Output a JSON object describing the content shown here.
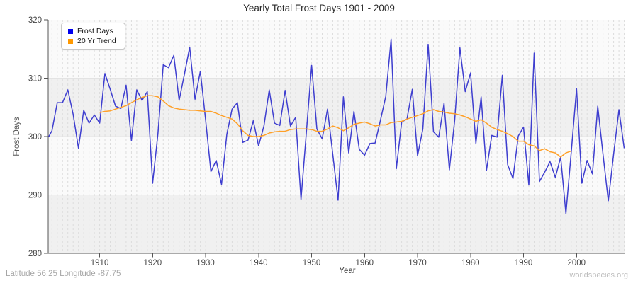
{
  "header": {
    "title": "Yearly Total Frost Days 1901 - 2009"
  },
  "footer": {
    "left": "Latitude 56.25 Longitude -87.75",
    "right": "worldspecies.org"
  },
  "chart_data": {
    "type": "line",
    "title": "Yearly Total Frost Days 1901 - 2009",
    "xlabel": "Year",
    "ylabel": "Frost Days",
    "xlim": [
      1901,
      2009
    ],
    "ylim": [
      280,
      320
    ],
    "yticks": [
      280,
      290,
      300,
      310,
      320
    ],
    "xticks": [
      1910,
      1920,
      1930,
      1940,
      1950,
      1960,
      1970,
      1980,
      1990,
      2000
    ],
    "grid": {
      "bands": true,
      "band_colors": [
        "#f0f0f0",
        "#fafafa"
      ],
      "vline_color": "#dcdcdc",
      "hline_color": "#e3e3e3",
      "axis_color": "#555555"
    },
    "legend_position": "top-left",
    "series": [
      {
        "name": "Frost Days",
        "color": "#3e3ecf",
        "swatch_color": "#0000ee",
        "x_start": 1901,
        "lead_in": {
          "year": 1900.35,
          "value": 299.9
        },
        "values": [
          301.0,
          305.8,
          305.8,
          308.0,
          303.8,
          298.0,
          304.5,
          302.3,
          303.7,
          302.3,
          310.8,
          308.1,
          305.2,
          304.8,
          308.8,
          299.3,
          308.0,
          306.2,
          307.7,
          292.0,
          300.5,
          312.3,
          311.8,
          313.9,
          306.2,
          310.7,
          315.3,
          306.4,
          311.2,
          302.8,
          294.0,
          295.9,
          291.8,
          300.4,
          304.7,
          305.8,
          299.0,
          299.4,
          302.7,
          298.4,
          301.8,
          308.0,
          302.3,
          301.9,
          307.9,
          301.8,
          303.3,
          289.2,
          300.6,
          312.2,
          301.3,
          299.6,
          304.7,
          297.0,
          289.1,
          306.8,
          297.2,
          304.3,
          297.8,
          296.8,
          298.8,
          298.9,
          302.8,
          306.9,
          316.7,
          294.5,
          302.5,
          303.0,
          308.1,
          296.7,
          301.3,
          315.8,
          300.8,
          299.9,
          305.7,
          294.3,
          302.8,
          315.2,
          307.7,
          310.9,
          298.8,
          306.8,
          294.2,
          300.2,
          299.9,
          310.5,
          295.2,
          292.8,
          300.1,
          301.6,
          291.7,
          314.3,
          292.3,
          293.9,
          295.7,
          293.0,
          296.5,
          286.8,
          297.3,
          308.2,
          292.0,
          295.9,
          293.6,
          305.2,
          297.0,
          289.0,
          297.0,
          304.6,
          298.0
        ]
      },
      {
        "name": "20 Yr Trend",
        "color": "#ffa028",
        "swatch_color": "#ff9900",
        "x_start": 1910,
        "values": [
          304.1,
          304.3,
          304.4,
          304.7,
          305.0,
          305.3,
          305.8,
          306.3,
          306.7,
          307.0,
          307.0,
          306.8,
          306.1,
          305.3,
          304.9,
          304.7,
          304.6,
          304.5,
          304.5,
          304.4,
          304.3,
          304.3,
          304.0,
          303.6,
          303.3,
          303.0,
          302.2,
          301.0,
          300.2,
          300.0,
          300.0,
          300.2,
          300.6,
          300.8,
          300.9,
          300.9,
          301.2,
          301.3,
          301.3,
          301.3,
          301.2,
          300.9,
          300.9,
          301.3,
          301.8,
          301.5,
          301.0,
          301.5,
          302.1,
          302.3,
          302.5,
          302.2,
          301.8,
          302.0,
          302.0,
          302.4,
          302.5,
          302.6,
          303.0,
          303.3,
          303.6,
          303.9,
          304.4,
          304.6,
          304.3,
          304.2,
          304.0,
          303.9,
          303.7,
          303.4,
          303.0,
          302.6,
          302.9,
          302.3,
          301.6,
          301.2,
          300.9,
          300.5,
          300.0,
          299.2,
          299.2,
          298.6,
          298.4,
          297.6,
          297.9,
          297.4,
          297.2,
          296.5,
          297.2,
          297.5
        ]
      }
    ]
  }
}
